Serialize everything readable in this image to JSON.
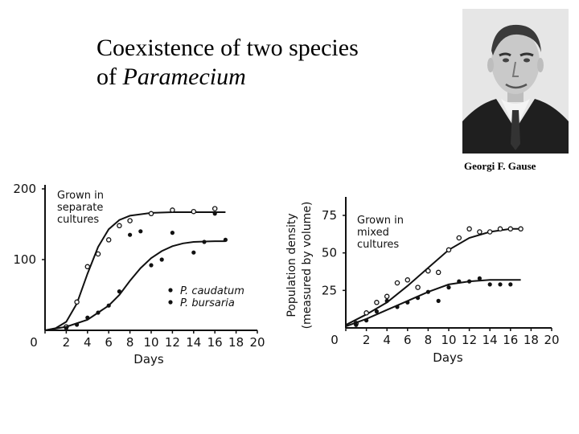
{
  "slide": {
    "title_line1": "Coexistence of two species",
    "title_line2_prefix": "of ",
    "title_line2_italic": "Paramecium",
    "photo_caption": "Georgi F. Gause"
  },
  "chart_data": [
    {
      "type": "line",
      "annotation": [
        "Grown in",
        "separate",
        "cultures"
      ],
      "xlabel": "Days",
      "ylabel": "",
      "xticks": [
        "0",
        "2",
        "4",
        "6",
        "8",
        "10",
        "12",
        "14",
        "16",
        "18",
        "20"
      ],
      "yticks": [
        "200",
        "100"
      ],
      "xlim": [
        0,
        20
      ],
      "ylim": [
        0,
        200
      ],
      "legend": [
        "P. caudatum",
        "P. bursaria"
      ],
      "legend_position": "right",
      "series": [
        {
          "name": "P. caudatum",
          "marker": "open",
          "points": [
            [
              2,
              5
            ],
            [
              3,
              40
            ],
            [
              4,
              90
            ],
            [
              5,
              108
            ],
            [
              6,
              128
            ],
            [
              7,
              148
            ],
            [
              8,
              155
            ],
            [
              10,
              165
            ],
            [
              12,
              170
            ],
            [
              14,
              168
            ],
            [
              16,
              172
            ]
          ],
          "curve": [
            [
              0,
              0
            ],
            [
              1,
              3
            ],
            [
              2,
              12
            ],
            [
              3,
              38
            ],
            [
              4,
              80
            ],
            [
              5,
              118
            ],
            [
              6,
              143
            ],
            [
              7,
              156
            ],
            [
              8,
              162
            ],
            [
              10,
              166
            ],
            [
              12,
              167
            ],
            [
              14,
              167
            ],
            [
              16,
              167
            ],
            [
              17,
              167
            ]
          ]
        },
        {
          "name": "P. bursaria",
          "marker": "filled",
          "points": [
            [
              2,
              3
            ],
            [
              3,
              8
            ],
            [
              4,
              18
            ],
            [
              5,
              25
            ],
            [
              6,
              35
            ],
            [
              7,
              55
            ],
            [
              8,
              135
            ],
            [
              9,
              140
            ],
            [
              10,
              92
            ],
            [
              11,
              100
            ],
            [
              12,
              138
            ],
            [
              14,
              110
            ],
            [
              15,
              125
            ],
            [
              16,
              165
            ],
            [
              17,
              128
            ]
          ],
          "curve": [
            [
              0,
              0
            ],
            [
              2,
              5
            ],
            [
              4,
              15
            ],
            [
              6,
              35
            ],
            [
              7,
              50
            ],
            [
              8,
              70
            ],
            [
              9,
              88
            ],
            [
              10,
              102
            ],
            [
              11,
              112
            ],
            [
              12,
              119
            ],
            [
              13,
              123
            ],
            [
              14,
              125
            ],
            [
              16,
              126
            ],
            [
              17,
              126
            ]
          ]
        }
      ]
    },
    {
      "type": "line",
      "annotation": [
        "Grown in",
        "mixed",
        "cultures"
      ],
      "xlabel": "Days",
      "ylabel": [
        "Population density",
        "(measured by volume)"
      ],
      "xticks": [
        "0",
        "2",
        "4",
        "6",
        "8",
        "10",
        "12",
        "14",
        "16",
        "18",
        "20"
      ],
      "yticks": [
        "75",
        "50",
        "25"
      ],
      "xlim": [
        0,
        20
      ],
      "ylim": [
        0,
        75
      ],
      "series": [
        {
          "name": "P. caudatum",
          "marker": "open",
          "points": [
            [
              1,
              3
            ],
            [
              2,
              10
            ],
            [
              3,
              17
            ],
            [
              4,
              21
            ],
            [
              5,
              30
            ],
            [
              6,
              32
            ],
            [
              7,
              27
            ],
            [
              8,
              38
            ],
            [
              9,
              37
            ],
            [
              10,
              52
            ],
            [
              11,
              60
            ],
            [
              12,
              66
            ],
            [
              13,
              64
            ],
            [
              14,
              64
            ],
            [
              15,
              66
            ],
            [
              16,
              66
            ],
            [
              17,
              66
            ]
          ],
          "curve": [
            [
              0,
              2
            ],
            [
              2,
              9
            ],
            [
              4,
              17
            ],
            [
              6,
              28
            ],
            [
              8,
              40
            ],
            [
              10,
              52
            ],
            [
              12,
              60
            ],
            [
              14,
              64
            ],
            [
              16,
              66
            ],
            [
              17,
              66
            ]
          ]
        },
        {
          "name": "P. bursaria",
          "marker": "filled",
          "points": [
            [
              1,
              2
            ],
            [
              2,
              5
            ],
            [
              3,
              11
            ],
            [
              4,
              18
            ],
            [
              5,
              14
            ],
            [
              6,
              17
            ],
            [
              7,
              20
            ],
            [
              8,
              24
            ],
            [
              9,
              18
            ],
            [
              10,
              27
            ],
            [
              11,
              31
            ],
            [
              12,
              31
            ],
            [
              13,
              33
            ],
            [
              14,
              29
            ],
            [
              15,
              29
            ],
            [
              16,
              29
            ]
          ],
          "curve": [
            [
              0,
              1
            ],
            [
              2,
              6
            ],
            [
              4,
              12
            ],
            [
              6,
              18
            ],
            [
              8,
              24
            ],
            [
              10,
              29
            ],
            [
              12,
              31
            ],
            [
              14,
              32
            ],
            [
              16,
              32
            ],
            [
              17,
              32
            ]
          ]
        }
      ]
    }
  ]
}
